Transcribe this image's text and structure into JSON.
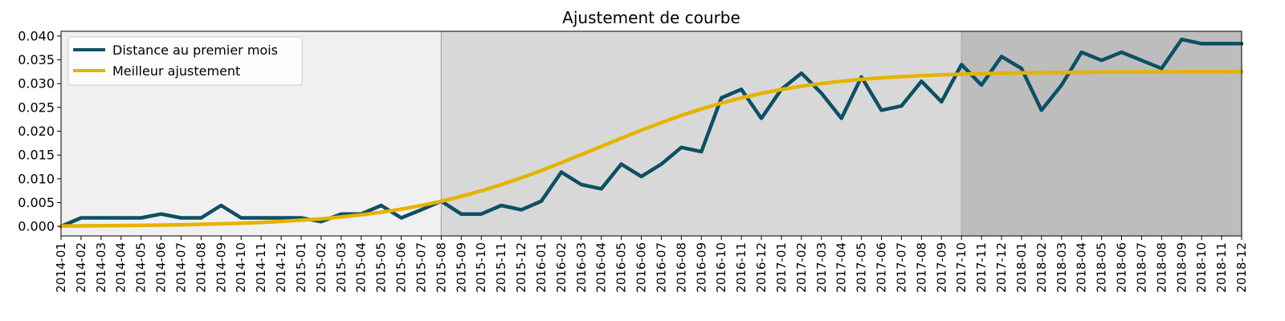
{
  "chart_data": {
    "type": "line",
    "title": "Ajustement de courbe",
    "xlabel": "",
    "ylabel": "",
    "ylim": [
      -0.002,
      0.041
    ],
    "yticks": [
      "0.000",
      "0.005",
      "0.010",
      "0.015",
      "0.020",
      "0.025",
      "0.030",
      "0.035",
      "0.040"
    ],
    "x": [
      "2014-01",
      "2014-02",
      "2014-03",
      "2014-04",
      "2014-05",
      "2014-06",
      "2014-07",
      "2014-08",
      "2014-09",
      "2014-10",
      "2014-11",
      "2014-12",
      "2015-01",
      "2015-02",
      "2015-03",
      "2015-04",
      "2015-05",
      "2015-06",
      "2015-07",
      "2015-08",
      "2015-09",
      "2015-10",
      "2015-11",
      "2015-12",
      "2016-01",
      "2016-02",
      "2016-03",
      "2016-04",
      "2016-05",
      "2016-06",
      "2016-07",
      "2016-08",
      "2016-09",
      "2016-10",
      "2016-11",
      "2016-12",
      "2017-01",
      "2017-02",
      "2017-03",
      "2017-04",
      "2017-05",
      "2017-06",
      "2017-07",
      "2017-08",
      "2017-09",
      "2017-10",
      "2017-11",
      "2017-12",
      "2018-01",
      "2018-02",
      "2018-03",
      "2018-04",
      "2018-05",
      "2018-06",
      "2018-07",
      "2018-08",
      "2018-09",
      "2018-10",
      "2018-11",
      "2018-12"
    ],
    "shaded_regions": [
      {
        "start": "2014-01",
        "end": "2015-08",
        "color": "#f0f0f0"
      },
      {
        "start": "2015-08",
        "end": "2017-10",
        "color": "#d8d8d8"
      },
      {
        "start": "2017-10",
        "end": "2018-12",
        "color": "#bdbdbd"
      }
    ],
    "series": [
      {
        "name": "Distance au premier mois",
        "color": "#0d4f63",
        "values": [
          0.0,
          0.0018,
          0.0018,
          0.0018,
          0.0018,
          0.0026,
          0.0018,
          0.0018,
          0.0044,
          0.0018,
          0.0018,
          0.0018,
          0.0018,
          0.001,
          0.0026,
          0.0026,
          0.0044,
          0.0018,
          0.0035,
          0.0053,
          0.0026,
          0.0026,
          0.0044,
          0.0035,
          0.0053,
          0.0114,
          0.0088,
          0.0079,
          0.0131,
          0.0105,
          0.0131,
          0.0166,
          0.0157,
          0.027,
          0.0288,
          0.0227,
          0.0288,
          0.0322,
          0.028,
          0.0227,
          0.0314,
          0.0244,
          0.0253,
          0.0305,
          0.0262,
          0.034,
          0.0297,
          0.0357,
          0.0332,
          0.0244,
          0.0297,
          0.0366,
          0.0349,
          0.0366,
          0.0349,
          0.0332,
          0.0393,
          0.0384,
          0.0384,
          0.0384
        ]
      },
      {
        "name": "Meilleur ajustement",
        "color": "#e6b200",
        "values": [
          9e-05,
          0.00011,
          0.00014,
          0.00018,
          0.00022,
          0.00028,
          0.00035,
          0.00044,
          0.00054,
          0.00068,
          0.00084,
          0.00105,
          0.0013,
          0.0016,
          0.00198,
          0.00243,
          0.00297,
          0.00362,
          0.00439,
          0.00528,
          0.00631,
          0.00748,
          0.00878,
          0.01021,
          0.01175,
          0.01339,
          0.01509,
          0.01681,
          0.01853,
          0.02021,
          0.02181,
          0.02331,
          0.02468,
          0.02592,
          0.02701,
          0.02796,
          0.02877,
          0.02946,
          0.03003,
          0.03051,
          0.0309,
          0.03122,
          0.03148,
          0.03169,
          0.03186,
          0.03199,
          0.0321,
          0.03219,
          0.03226,
          0.03231,
          0.03236,
          0.03239,
          0.03242,
          0.03244,
          0.03246,
          0.03247,
          0.03248,
          0.03249,
          0.03249,
          0.0325
        ]
      }
    ],
    "legend_position": "top-left",
    "grid": false
  }
}
